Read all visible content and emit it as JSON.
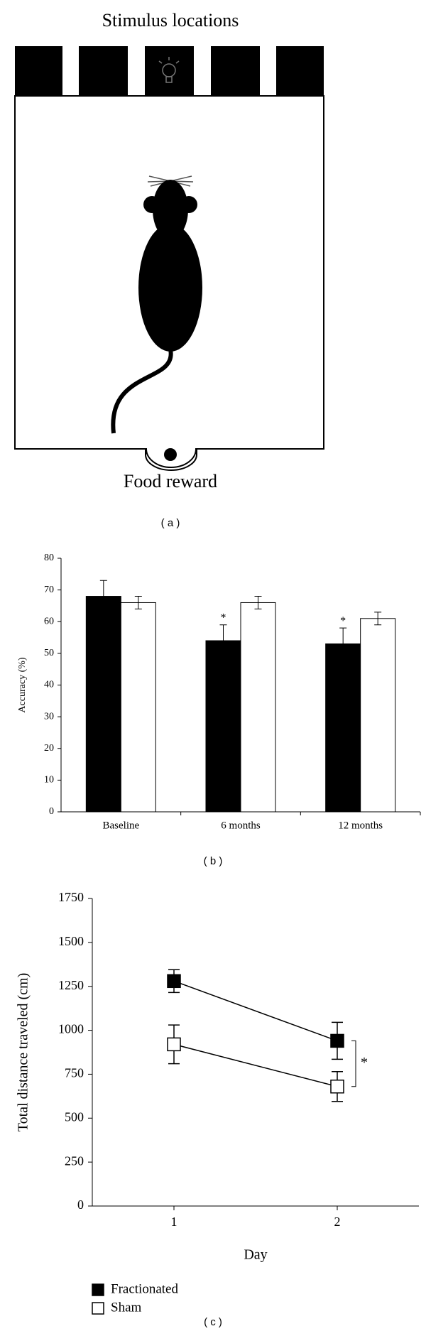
{
  "diagram": {
    "title": "Stimulus locations",
    "label": "Food reward",
    "caption": "( a )"
  },
  "chart_data": [
    {
      "type": "bar",
      "caption": "( b )",
      "ylabel": "Accuracy (%)",
      "categories": [
        "Baseline",
        "6 months",
        "12 months"
      ],
      "series": [
        {
          "color": "#000000",
          "values": [
            68,
            54,
            53
          ],
          "errors": [
            5,
            5,
            5
          ]
        },
        {
          "color": "#ffffff",
          "values": [
            66,
            66,
            61
          ],
          "errors": [
            2,
            2,
            2
          ]
        }
      ],
      "ylim": [
        0,
        80
      ],
      "yticks": [
        0,
        10,
        20,
        30,
        40,
        50,
        60,
        70,
        80
      ],
      "annotations": [
        {
          "text": "*",
          "category": "6 months"
        },
        {
          "text": "*",
          "category": "12 months"
        }
      ]
    },
    {
      "type": "line",
      "caption": "( c )",
      "xlabel": "Day",
      "ylabel": "Total distance traveled (cm)",
      "x": [
        1,
        2
      ],
      "series": [
        {
          "name": "Fractionated",
          "color": "#000000",
          "values": [
            1280,
            940
          ],
          "errors": [
            65,
            105
          ]
        },
        {
          "name": "Sham",
          "color": "#ffffff",
          "values": [
            920,
            680
          ],
          "errors": [
            110,
            85
          ]
        }
      ],
      "xlim": [
        0.5,
        2.5
      ],
      "xticks": [
        1,
        2
      ],
      "ylim": [
        0,
        1750
      ],
      "yticks": [
        0,
        250,
        500,
        750,
        1000,
        1250,
        1500,
        1750
      ],
      "annotation": "*",
      "legend": "bottom-left"
    }
  ]
}
